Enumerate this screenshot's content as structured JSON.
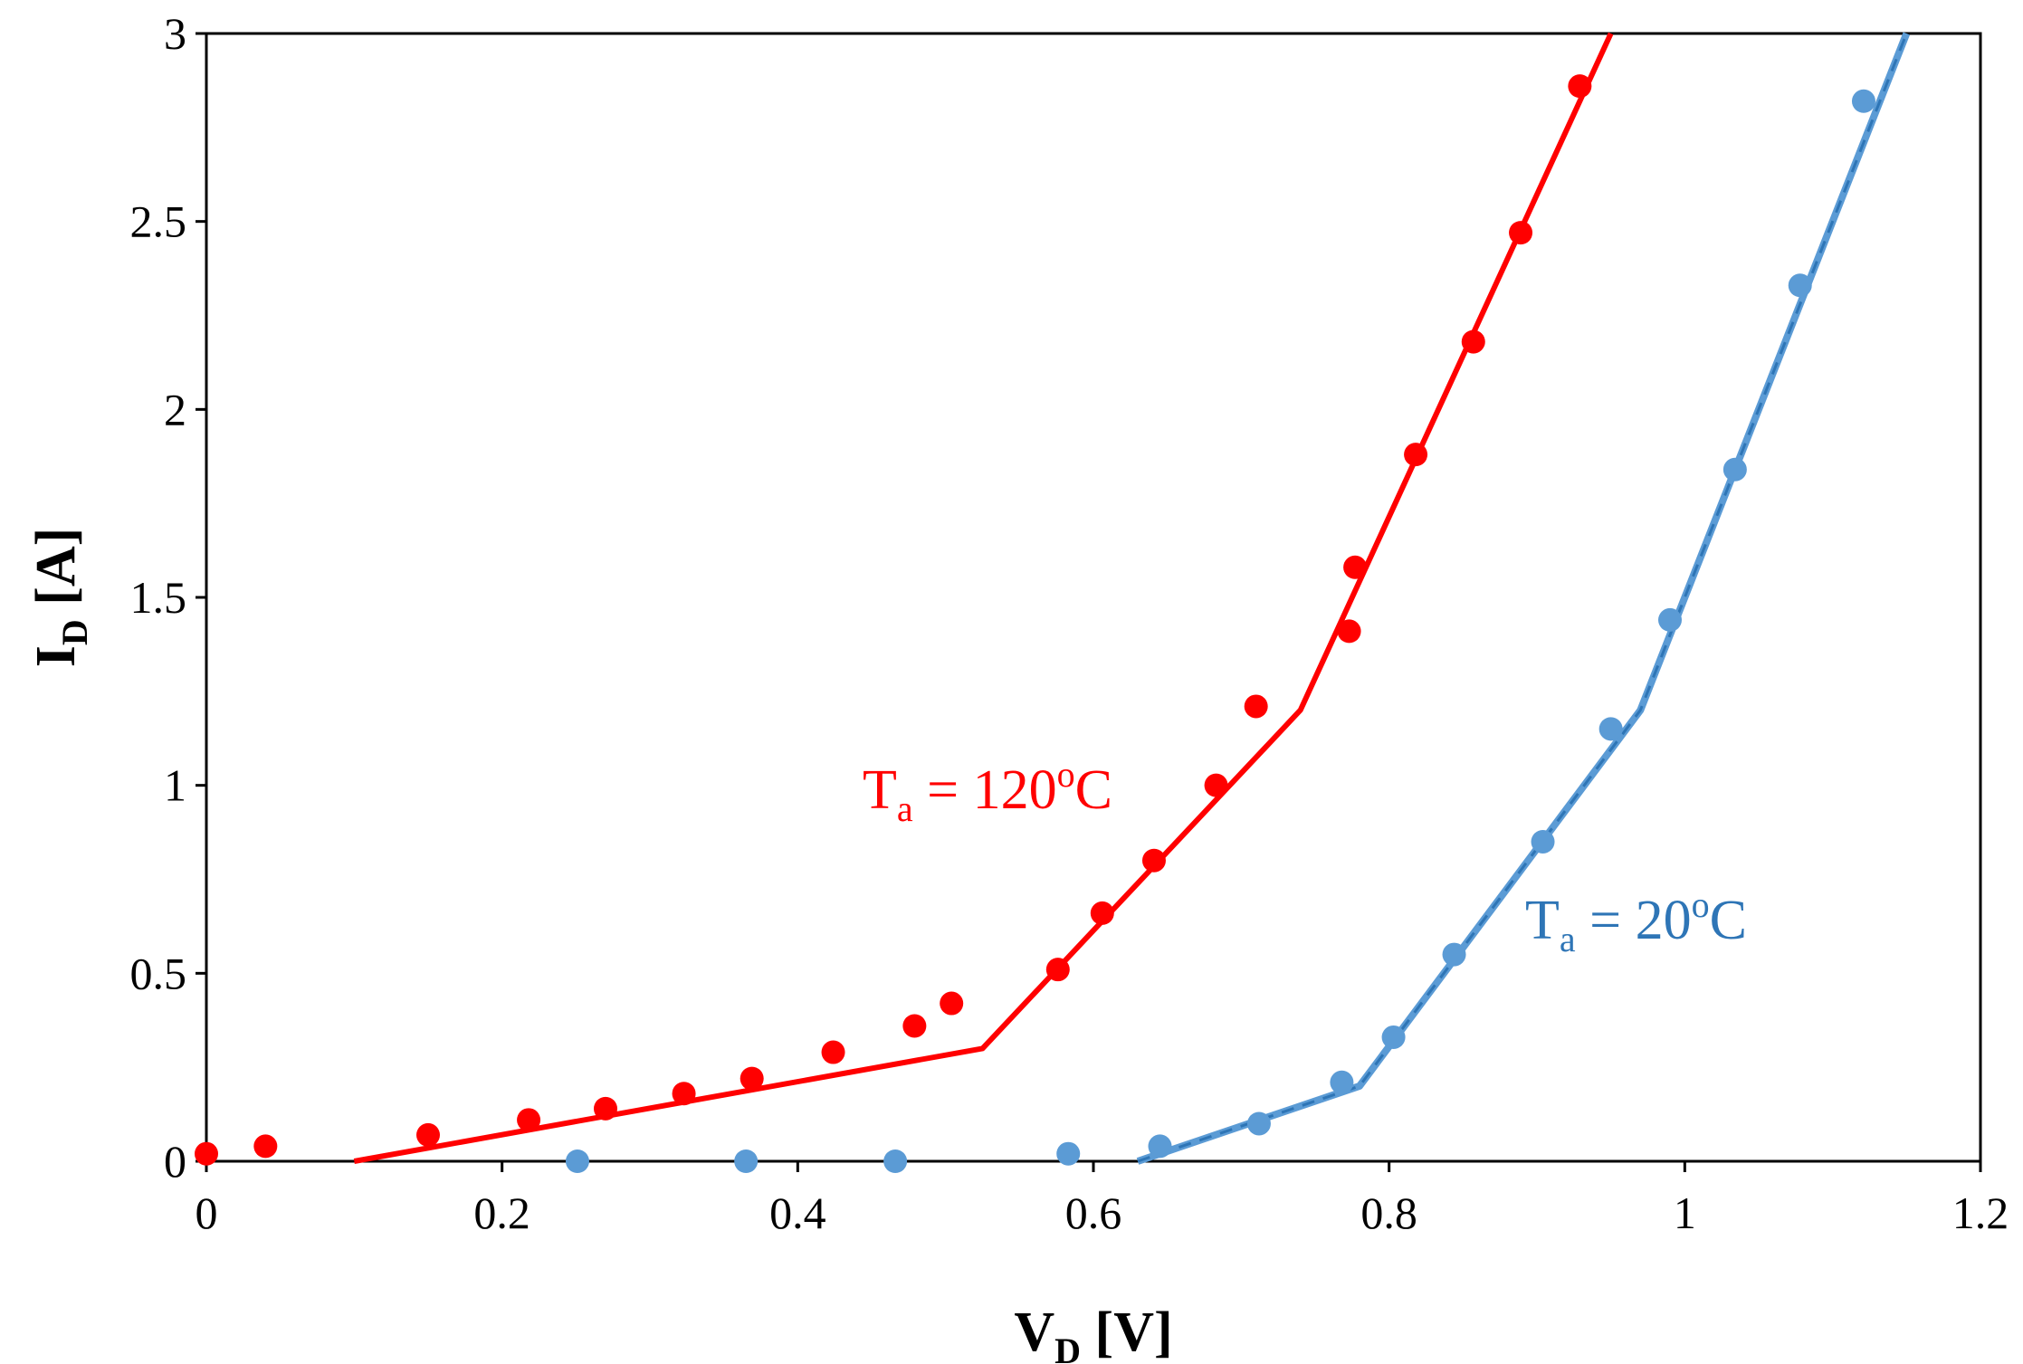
{
  "chart_data": {
    "type": "scatter",
    "xlabel": {
      "main": "V",
      "sub": "D",
      "unit": " [V]"
    },
    "ylabel": {
      "main": "I",
      "sub": "D",
      "unit": " [A]"
    },
    "xlim": [
      0,
      1.2
    ],
    "ylim": [
      0,
      3
    ],
    "x_ticks": [
      "0",
      "0.2",
      "0.4",
      "0.6",
      "0.8",
      "1",
      "1.2"
    ],
    "y_ticks": [
      "0",
      "0.5",
      "1",
      "1.5",
      "2",
      "2.5",
      "3"
    ],
    "grid": false,
    "legend": "none",
    "series": [
      {
        "color": "#ff0000",
        "points": [
          [
            0.0,
            0.02
          ],
          [
            0.04,
            0.04
          ],
          [
            0.15,
            0.07
          ],
          [
            0.218,
            0.11
          ],
          [
            0.27,
            0.14
          ],
          [
            0.323,
            0.18
          ],
          [
            0.369,
            0.22
          ],
          [
            0.424,
            0.29
          ],
          [
            0.479,
            0.36
          ],
          [
            0.504,
            0.42
          ],
          [
            0.576,
            0.51
          ],
          [
            0.606,
            0.66
          ],
          [
            0.641,
            0.8
          ],
          [
            0.683,
            1.0
          ],
          [
            0.71,
            1.21
          ],
          [
            0.773,
            1.41
          ],
          [
            0.777,
            1.58
          ],
          [
            0.818,
            1.88
          ],
          [
            0.857,
            2.18
          ],
          [
            0.889,
            2.47
          ],
          [
            0.929,
            2.86
          ]
        ],
        "fit": [
          [
            0.1,
            0.0
          ],
          [
            0.525,
            0.3
          ],
          [
            0.74,
            1.2
          ],
          [
            0.95,
            3.0
          ]
        ],
        "annotation": {
          "base": "T",
          "sub": "a",
          "mid": " = 120",
          "sup": "o",
          "end": "C",
          "color": "#ff0000"
        }
      },
      {
        "color": "#5b9bd5",
        "fit_color": "#2e75b6",
        "points": [
          [
            0.251,
            0.0
          ],
          [
            0.365,
            0.0
          ],
          [
            0.466,
            0.0
          ],
          [
            0.583,
            0.02
          ],
          [
            0.645,
            0.04
          ],
          [
            0.712,
            0.1
          ],
          [
            0.768,
            0.21
          ],
          [
            0.803,
            0.33
          ],
          [
            0.844,
            0.55
          ],
          [
            0.904,
            0.85
          ],
          [
            0.95,
            1.15
          ],
          [
            0.99,
            1.44
          ],
          [
            1.034,
            1.84
          ],
          [
            1.078,
            2.33
          ],
          [
            1.121,
            2.82
          ]
        ],
        "fit": [
          [
            0.63,
            0.0
          ],
          [
            0.78,
            0.2
          ],
          [
            0.97,
            1.2
          ],
          [
            1.15,
            3.0
          ]
        ],
        "annotation": {
          "base": "T",
          "sub": "a",
          "mid": " = 20",
          "sup": "o",
          "end": "C",
          "color": "#2e75b6"
        }
      }
    ]
  }
}
